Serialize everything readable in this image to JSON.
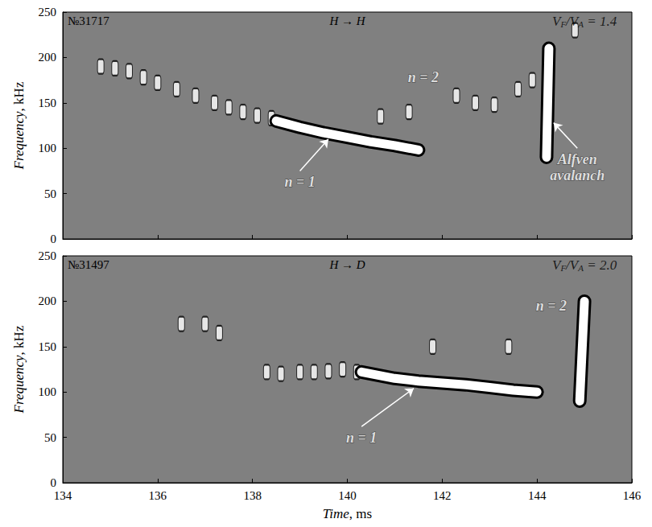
{
  "chart_data": [
    {
      "type": "scatter",
      "title": "№31717",
      "subtitle": "H → H",
      "y_label": "Frequency, kHz",
      "xlim": [
        134,
        146
      ],
      "xticks": [
        134,
        136,
        138,
        140,
        142,
        144,
        146
      ],
      "ylim": [
        0,
        250
      ],
      "yticks": [
        0,
        50,
        100,
        150,
        200,
        250
      ],
      "tick_labels": "y",
      "series": [
        {
          "type": "scatter",
          "color": "#ffffff",
          "x": [
            134.8,
            135.1,
            135.4,
            135.7,
            136.0,
            136.4,
            136.8,
            137.2,
            137.5,
            137.8,
            138.1,
            138.4
          ],
          "values": [
            190,
            188,
            185,
            178,
            172,
            165,
            158,
            150,
            145,
            140,
            136,
            133
          ]
        },
        {
          "type": "line",
          "color": "#ffffff",
          "x": [
            138.5,
            139.0,
            139.5,
            140.0,
            140.5,
            141.0,
            141.5
          ],
          "values": [
            130,
            123,
            117,
            112,
            107,
            103,
            98
          ]
        },
        {
          "type": "scatter",
          "color": "#ffffff",
          "x": [
            140.7,
            141.3,
            142.3,
            142.7,
            143.1,
            143.6,
            143.9,
            144.8
          ],
          "values": [
            135,
            140,
            158,
            150,
            148,
            165,
            175,
            230
          ]
        },
        {
          "type": "line",
          "color": "#ffffff",
          "x": [
            144.2,
            144.25
          ],
          "values": [
            90,
            210
          ]
        }
      ],
      "annotations": [
        {
          "text": "VF/VA = 1.4",
          "x": 145.0,
          "y": 240
        },
        {
          "text": "n = 1",
          "x": 139.0,
          "y": 75,
          "arrow_to": [
            139.6,
            110
          ]
        },
        {
          "text": "n = 2",
          "x": 141.6,
          "y": 178
        },
        {
          "text": "Alfven avalanch",
          "x": 144.85,
          "y": 100,
          "arrow_to": [
            144.35,
            128
          ]
        }
      ]
    },
    {
      "type": "scatter",
      "title": "№31497",
      "subtitle": "H → D",
      "x_label": "Time, ms",
      "y_label": "Frequency, kHz",
      "xlim": [
        134,
        146
      ],
      "xticks": [
        134,
        136,
        138,
        140,
        142,
        144,
        146
      ],
      "ylim": [
        0,
        250
      ],
      "yticks": [
        0,
        50,
        100,
        150,
        200,
        250
      ],
      "series": [
        {
          "type": "scatter",
          "color": "#ffffff",
          "x": [
            136.5,
            137.0,
            137.3,
            138.3,
            138.6,
            139.0,
            139.3,
            139.6,
            139.9,
            140.2
          ],
          "values": [
            175,
            175,
            165,
            122,
            120,
            122,
            122,
            123,
            125,
            122
          ]
        },
        {
          "type": "line",
          "color": "#ffffff",
          "x": [
            140.3,
            141.0,
            141.5,
            142.0,
            142.5,
            143.0,
            143.5,
            144.0
          ],
          "values": [
            122,
            115,
            112,
            110,
            108,
            105,
            102,
            100
          ]
        },
        {
          "type": "scatter",
          "color": "#ffffff",
          "x": [
            141.8,
            143.4
          ],
          "values": [
            150,
            150
          ]
        },
        {
          "type": "line",
          "color": "#ffffff",
          "x": [
            144.9,
            145.0
          ],
          "values": [
            90,
            200
          ]
        }
      ],
      "annotations": [
        {
          "text": "VF/VA = 2.0",
          "x": 145.0,
          "y": 240
        },
        {
          "text": "n = 1",
          "x": 140.3,
          "y": 62,
          "arrow_to": [
            141.4,
            104
          ]
        },
        {
          "text": "n = 2",
          "x": 144.3,
          "y": 195
        }
      ]
    }
  ]
}
